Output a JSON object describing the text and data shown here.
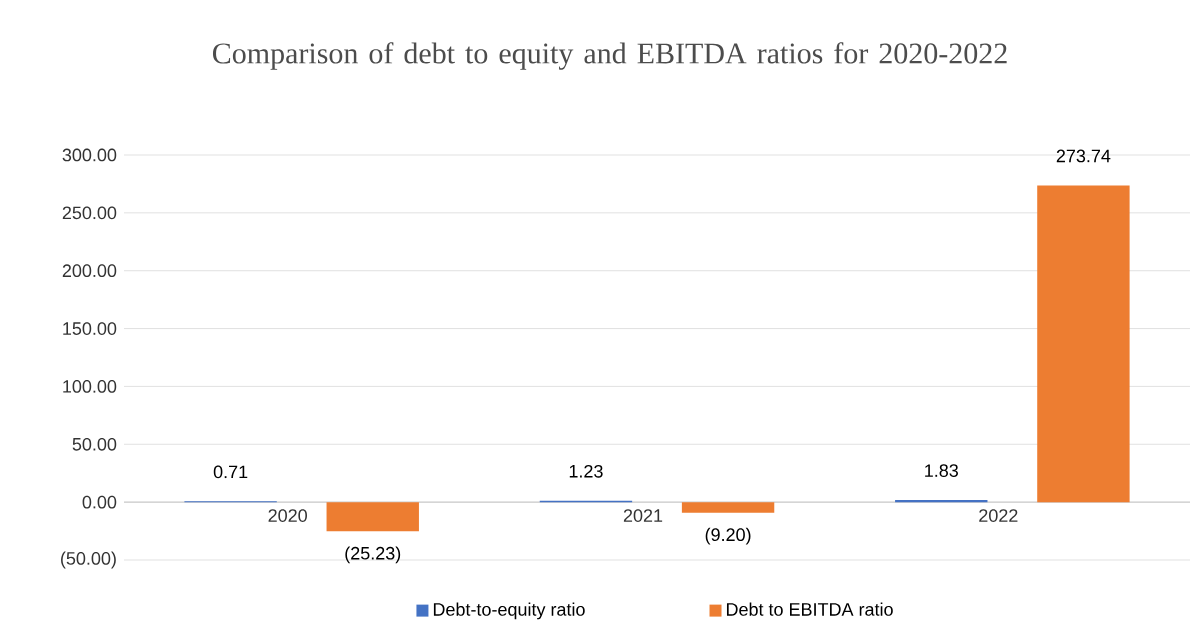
{
  "chart_data": {
    "type": "bar",
    "title": "Comparison of debt to equity and EBITDA ratios for 2020-2022",
    "categories": [
      "2020",
      "2021",
      "2022"
    ],
    "series": [
      {
        "name": "Debt-to-equity ratio",
        "color": "#4472c4",
        "values": [
          0.71,
          1.23,
          1.83
        ],
        "value_labels": [
          "0.71",
          "1.23",
          "1.83"
        ]
      },
      {
        "name": "Debt to EBITDA ratio",
        "color": "#ed7d31",
        "values": [
          -25.23,
          -9.2,
          273.74
        ],
        "value_labels": [
          "(25.23)",
          "(9.20)",
          "273.74"
        ]
      }
    ],
    "ylim": [
      -50,
      300
    ],
    "yticks": [
      {
        "value": -50,
        "label": "(50.00)"
      },
      {
        "value": 0,
        "label": "0.00"
      },
      {
        "value": 50,
        "label": "50.00"
      },
      {
        "value": 100,
        "label": "100.00"
      },
      {
        "value": 150,
        "label": "150.00"
      },
      {
        "value": 200,
        "label": "200.00"
      },
      {
        "value": 250,
        "label": "250.00"
      },
      {
        "value": 300,
        "label": "300.00"
      }
    ],
    "grid": "y",
    "legend": "bottom"
  }
}
